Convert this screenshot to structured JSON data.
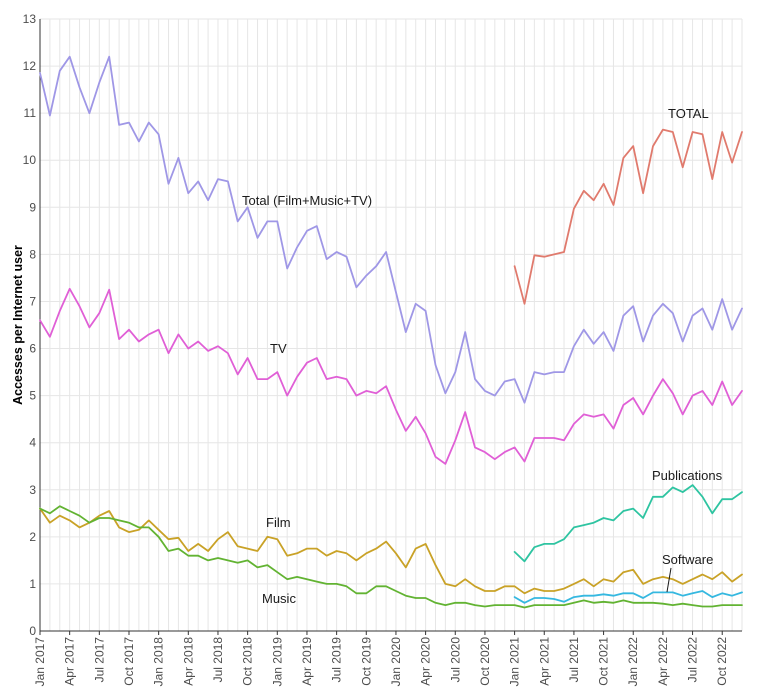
{
  "chart_data": {
    "type": "line",
    "ylabel": "Accesses per Internet user",
    "xlabel": "",
    "title": "",
    "ylim": [
      0,
      13
    ],
    "xlim": [
      "2017-01",
      "2022-12"
    ],
    "grid": true,
    "yticks": [
      0,
      1,
      2,
      3,
      4,
      5,
      6,
      7,
      8,
      9,
      10,
      11,
      12,
      13
    ],
    "xticks": [
      "Jan 2017",
      "Apr 2017",
      "Jul 2017",
      "Oct 2017",
      "Jan 2018",
      "Apr 2018",
      "Jul 2018",
      "Oct 2018",
      "Jan 2019",
      "Apr 2019",
      "Jul 2019",
      "Oct 2019",
      "Jan 2020",
      "Apr 2020",
      "Jul 2020",
      "Oct 2020",
      "Jan 2021",
      "Apr 2021",
      "Jul 2021",
      "Oct 2021",
      "Jan 2022",
      "Apr 2022",
      "Jul 2022",
      "Oct 2022"
    ],
    "annotations": [
      {
        "text": "TOTAL",
        "series": "TOTAL"
      },
      {
        "text": "Total (Film+Music+TV)",
        "series": "Total (Film+Music+TV)"
      },
      {
        "text": "TV",
        "series": "TV"
      },
      {
        "text": "Publications",
        "series": "Publications"
      },
      {
        "text": "Film",
        "series": "Film"
      },
      {
        "text": "Software",
        "series": "Software"
      },
      {
        "text": "Music",
        "series": "Music"
      }
    ],
    "series": [
      {
        "name": "Total (Film+Music+TV)",
        "color": "#9f97e6",
        "start": "2017-01",
        "values": [
          11.85,
          10.95,
          11.9,
          12.2,
          11.55,
          11.0,
          11.65,
          12.2,
          10.75,
          10.8,
          10.4,
          10.8,
          10.55,
          9.5,
          10.05,
          9.3,
          9.55,
          9.15,
          9.6,
          9.55,
          8.7,
          9.0,
          8.35,
          8.7,
          8.7,
          7.7,
          8.15,
          8.5,
          8.6,
          7.9,
          8.05,
          7.95,
          7.3,
          7.55,
          7.75,
          8.05,
          7.2,
          6.35,
          6.95,
          6.8,
          5.65,
          5.05,
          5.5,
          6.35,
          5.35,
          5.1,
          5.0,
          5.3,
          5.35,
          4.85,
          5.5,
          5.45,
          5.5,
          5.5,
          6.05,
          6.4,
          6.1,
          6.35,
          5.95,
          6.7,
          6.9,
          6.15,
          6.7,
          6.95,
          6.75,
          6.15,
          6.7,
          6.85,
          6.4,
          7.05,
          6.4,
          6.85
        ]
      },
      {
        "name": "TV",
        "color": "#e05fd6",
        "start": "2017-01",
        "values": [
          6.6,
          6.25,
          6.8,
          7.27,
          6.9,
          6.45,
          6.75,
          7.25,
          6.2,
          6.4,
          6.15,
          6.3,
          6.4,
          5.9,
          6.3,
          6.0,
          6.15,
          5.95,
          6.05,
          5.9,
          5.45,
          5.8,
          5.35,
          5.35,
          5.5,
          5.0,
          5.4,
          5.7,
          5.8,
          5.35,
          5.4,
          5.35,
          5.0,
          5.1,
          5.05,
          5.2,
          4.7,
          4.25,
          4.55,
          4.2,
          3.7,
          3.55,
          4.05,
          4.65,
          3.9,
          3.8,
          3.65,
          3.8,
          3.9,
          3.6,
          4.1,
          4.1,
          4.1,
          4.05,
          4.4,
          4.6,
          4.55,
          4.6,
          4.3,
          4.8,
          4.95,
          4.6,
          5.0,
          5.35,
          5.05,
          4.6,
          5.0,
          5.1,
          4.8,
          5.3,
          4.8,
          5.1
        ]
      },
      {
        "name": "Film",
        "color": "#c9a227",
        "start": "2017-01",
        "values": [
          2.6,
          2.3,
          2.45,
          2.35,
          2.2,
          2.3,
          2.45,
          2.55,
          2.2,
          2.1,
          2.15,
          2.35,
          2.15,
          1.95,
          1.98,
          1.7,
          1.85,
          1.7,
          1.95,
          2.1,
          1.8,
          1.75,
          1.7,
          2.0,
          1.95,
          1.6,
          1.65,
          1.75,
          1.75,
          1.6,
          1.7,
          1.65,
          1.5,
          1.65,
          1.75,
          1.9,
          1.65,
          1.35,
          1.75,
          1.85,
          1.4,
          1.0,
          0.95,
          1.1,
          0.95,
          0.85,
          0.85,
          0.95,
          0.95,
          0.8,
          0.9,
          0.85,
          0.85,
          0.9,
          1.0,
          1.1,
          0.95,
          1.1,
          1.05,
          1.25,
          1.3,
          1.0,
          1.1,
          1.15,
          1.1,
          1.0,
          1.1,
          1.2,
          1.1,
          1.25,
          1.05,
          1.2
        ]
      },
      {
        "name": "Music",
        "color": "#62b332",
        "start": "2017-01",
        "values": [
          2.6,
          2.5,
          2.65,
          2.55,
          2.45,
          2.3,
          2.4,
          2.4,
          2.35,
          2.3,
          2.2,
          2.2,
          2.0,
          1.7,
          1.75,
          1.6,
          1.6,
          1.5,
          1.55,
          1.5,
          1.45,
          1.5,
          1.35,
          1.4,
          1.25,
          1.1,
          1.15,
          1.1,
          1.05,
          1.0,
          1.0,
          0.95,
          0.8,
          0.8,
          0.95,
          0.95,
          0.85,
          0.75,
          0.7,
          0.7,
          0.6,
          0.55,
          0.6,
          0.6,
          0.55,
          0.52,
          0.55,
          0.55,
          0.55,
          0.5,
          0.55,
          0.55,
          0.55,
          0.55,
          0.6,
          0.65,
          0.6,
          0.62,
          0.6,
          0.65,
          0.6,
          0.6,
          0.6,
          0.58,
          0.55,
          0.58,
          0.55,
          0.52,
          0.52,
          0.55,
          0.55,
          0.55
        ]
      },
      {
        "name": "TOTAL",
        "color": "#e07a6d",
        "start": "2021-01",
        "values": [
          7.75,
          6.95,
          7.98,
          7.95,
          8.0,
          8.05,
          8.97,
          9.35,
          9.15,
          9.5,
          9.05,
          10.05,
          10.3,
          9.3,
          10.3,
          10.65,
          10.6,
          9.85,
          10.6,
          10.55,
          9.6,
          10.6,
          9.95,
          10.6
        ]
      },
      {
        "name": "Publications",
        "color": "#2ec4a1",
        "start": "2021-01",
        "values": [
          1.68,
          1.48,
          1.78,
          1.85,
          1.85,
          1.95,
          2.2,
          2.25,
          2.3,
          2.4,
          2.35,
          2.55,
          2.6,
          2.4,
          2.85,
          2.85,
          3.05,
          2.95,
          3.1,
          2.85,
          2.5,
          2.8,
          2.8,
          2.95
        ]
      },
      {
        "name": "Software",
        "color": "#35b8e0",
        "start": "2021-01",
        "values": [
          0.72,
          0.6,
          0.7,
          0.7,
          0.68,
          0.62,
          0.72,
          0.75,
          0.75,
          0.78,
          0.75,
          0.8,
          0.8,
          0.7,
          0.82,
          0.82,
          0.82,
          0.75,
          0.8,
          0.85,
          0.72,
          0.8,
          0.75,
          0.82
        ]
      }
    ]
  }
}
